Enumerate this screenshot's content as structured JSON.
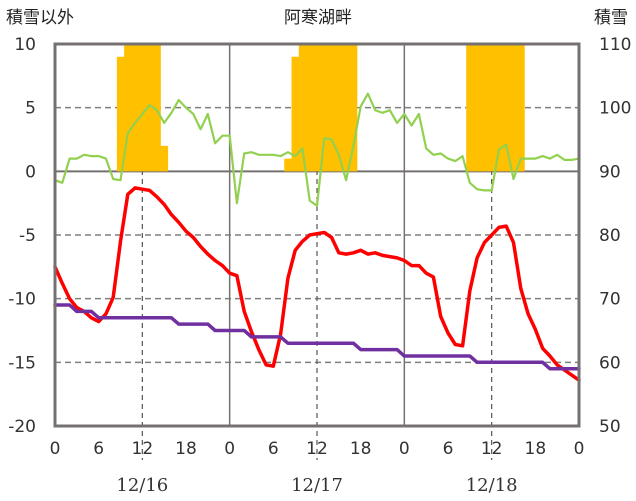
{
  "chart_data": {
    "type": "combo",
    "title": "阿寒湖畔",
    "left_axis": {
      "label": "積雪以外",
      "ticks": [
        "10",
        "5",
        "0",
        "-5",
        "-10",
        "-15",
        "-20"
      ],
      "min": -20,
      "max": 10
    },
    "right_axis": {
      "label": "積雪",
      "ticks": [
        "110",
        "100",
        "90",
        "80",
        "70",
        "60",
        "50"
      ],
      "min": 50,
      "max": 110
    },
    "x_ticks": [
      "0",
      "6",
      "12",
      "18",
      "0",
      "6",
      "12",
      "18",
      "0",
      "6",
      "12",
      "18",
      "0"
    ],
    "days": [
      "12/16",
      "12/17",
      "12/18"
    ],
    "x_max_hours": 72,
    "grid": {
      "horizontal_dashed": [
        5,
        -5,
        -10,
        -15
      ],
      "solid_zero": true,
      "vertical_solid_hours": [
        24,
        48
      ],
      "vertical_dashed_hours": [
        12,
        36,
        60
      ]
    },
    "colors": {
      "precip": "#FFC000",
      "sunshine": "#92D050",
      "temperature": "#FF0000",
      "snow_depth": "#7030A0",
      "frame": "#767171"
    },
    "precip_bars": {
      "hours": [
        9,
        10,
        11,
        12,
        13,
        14,
        15,
        32,
        33,
        34,
        35,
        36,
        37,
        38,
        39,
        40,
        41,
        57,
        58,
        59,
        60,
        61,
        62,
        63,
        64
      ],
      "values": [
        9,
        10,
        10,
        10,
        10,
        10,
        2,
        1,
        9,
        10,
        10,
        10,
        10,
        10,
        10,
        10,
        10,
        10,
        10,
        10,
        10,
        10,
        10,
        10,
        10
      ]
    },
    "series": [
      {
        "key": "sunshine",
        "color": "#92D050",
        "axis": "left",
        "x": [
          0,
          1,
          2,
          3,
          4,
          5,
          6,
          7,
          8,
          9,
          10,
          11,
          12,
          13,
          14,
          15,
          16,
          17,
          18,
          19,
          20,
          21,
          22,
          23,
          24,
          25,
          26,
          27,
          28,
          29,
          30,
          31,
          32,
          33,
          34,
          35,
          36,
          37,
          38,
          39,
          40,
          41,
          42,
          43,
          44,
          45,
          46,
          47,
          48,
          49,
          50,
          51,
          52,
          53,
          54,
          55,
          56,
          57,
          58,
          59,
          60,
          61,
          62,
          63,
          64,
          65,
          66,
          67,
          68,
          69,
          70,
          71,
          72
        ],
        "values": [
          -0.7,
          -0.9,
          1.0,
          1.0,
          1.3,
          1.2,
          1.2,
          1.0,
          -0.6,
          -0.7,
          3.0,
          3.8,
          4.5,
          5.2,
          4.8,
          3.8,
          4.6,
          5.6,
          5.0,
          4.5,
          3.3,
          4.5,
          2.2,
          2.8,
          2.8,
          -2.5,
          1.4,
          1.5,
          1.3,
          1.3,
          1.3,
          1.2,
          1.5,
          1.2,
          1.8,
          -2.3,
          -2.7,
          2.6,
          2.5,
          1.3,
          -0.7,
          2.0,
          5.1,
          6.1,
          4.8,
          4.6,
          4.8,
          3.8,
          4.5,
          3.6,
          4.5,
          1.8,
          1.3,
          1.4,
          1.0,
          0.8,
          1.2,
          -0.9,
          -1.4,
          -1.5,
          -1.5,
          1.7,
          2.1,
          -0.6,
          1.0,
          1.0,
          1.0,
          1.2,
          1.0,
          1.3,
          0.9,
          0.9,
          1.0
        ]
      },
      {
        "key": "temperature",
        "color": "#FF0000",
        "axis": "left",
        "x": [
          0,
          1,
          2,
          3,
          4,
          5,
          6,
          7,
          8,
          9,
          10,
          11,
          12,
          13,
          14,
          15,
          16,
          17,
          18,
          19,
          20,
          21,
          22,
          23,
          24,
          25,
          26,
          27,
          28,
          29,
          30,
          31,
          32,
          33,
          34,
          35,
          36,
          37,
          38,
          39,
          40,
          41,
          42,
          43,
          44,
          45,
          46,
          47,
          48,
          49,
          50,
          51,
          52,
          53,
          54,
          55,
          56,
          57,
          58,
          59,
          60,
          61,
          62,
          63,
          64,
          65,
          66,
          67,
          68,
          69,
          70,
          71,
          72
        ],
        "values": [
          -7.5,
          -8.8,
          -10.0,
          -10.7,
          -11.0,
          -11.5,
          -11.8,
          -11.2,
          -9.9,
          -5.5,
          -1.8,
          -1.3,
          -1.4,
          -1.5,
          -2.0,
          -2.6,
          -3.4,
          -4.0,
          -4.7,
          -5.2,
          -5.9,
          -6.5,
          -7.0,
          -7.4,
          -8.0,
          -8.2,
          -11.0,
          -12.6,
          -14.0,
          -15.2,
          -15.3,
          -12.8,
          -8.4,
          -6.2,
          -5.5,
          -5.0,
          -4.9,
          -4.8,
          -5.2,
          -6.4,
          -6.5,
          -6.4,
          -6.2,
          -6.5,
          -6.4,
          -6.6,
          -6.7,
          -6.8,
          -7.0,
          -7.4,
          -7.4,
          -8.0,
          -8.3,
          -11.4,
          -12.7,
          -13.6,
          -13.7,
          -9.4,
          -6.8,
          -5.6,
          -5.0,
          -4.4,
          -4.3,
          -5.6,
          -9.2,
          -11.2,
          -12.4,
          -13.9,
          -14.5,
          -15.2,
          -15.6,
          -16.0,
          -16.4
        ]
      },
      {
        "key": "snow_depth",
        "color": "#7030A0",
        "axis": "right",
        "x": [
          0,
          1,
          2,
          3,
          4,
          5,
          6,
          7,
          8,
          9,
          10,
          11,
          12,
          13,
          14,
          15,
          16,
          17,
          18,
          19,
          20,
          21,
          22,
          23,
          24,
          25,
          26,
          27,
          28,
          29,
          30,
          31,
          32,
          33,
          34,
          35,
          36,
          37,
          38,
          39,
          40,
          41,
          42,
          43,
          44,
          45,
          46,
          47,
          48,
          49,
          50,
          51,
          52,
          53,
          54,
          55,
          56,
          57,
          58,
          59,
          60,
          61,
          62,
          63,
          64,
          65,
          66,
          67,
          68,
          69,
          70,
          71,
          72
        ],
        "values": [
          69,
          69,
          69,
          68,
          68,
          68,
          67,
          67,
          67,
          67,
          67,
          67,
          67,
          67,
          67,
          67,
          67,
          66,
          66,
          66,
          66,
          66,
          65,
          65,
          65,
          65,
          65,
          64,
          64,
          64,
          64,
          64,
          63,
          63,
          63,
          63,
          63,
          63,
          63,
          63,
          63,
          63,
          62,
          62,
          62,
          62,
          62,
          62,
          61,
          61,
          61,
          61,
          61,
          61,
          61,
          61,
          61,
          61,
          60,
          60,
          60,
          60,
          60,
          60,
          60,
          60,
          60,
          60,
          59,
          59,
          59,
          59,
          59
        ]
      }
    ]
  }
}
